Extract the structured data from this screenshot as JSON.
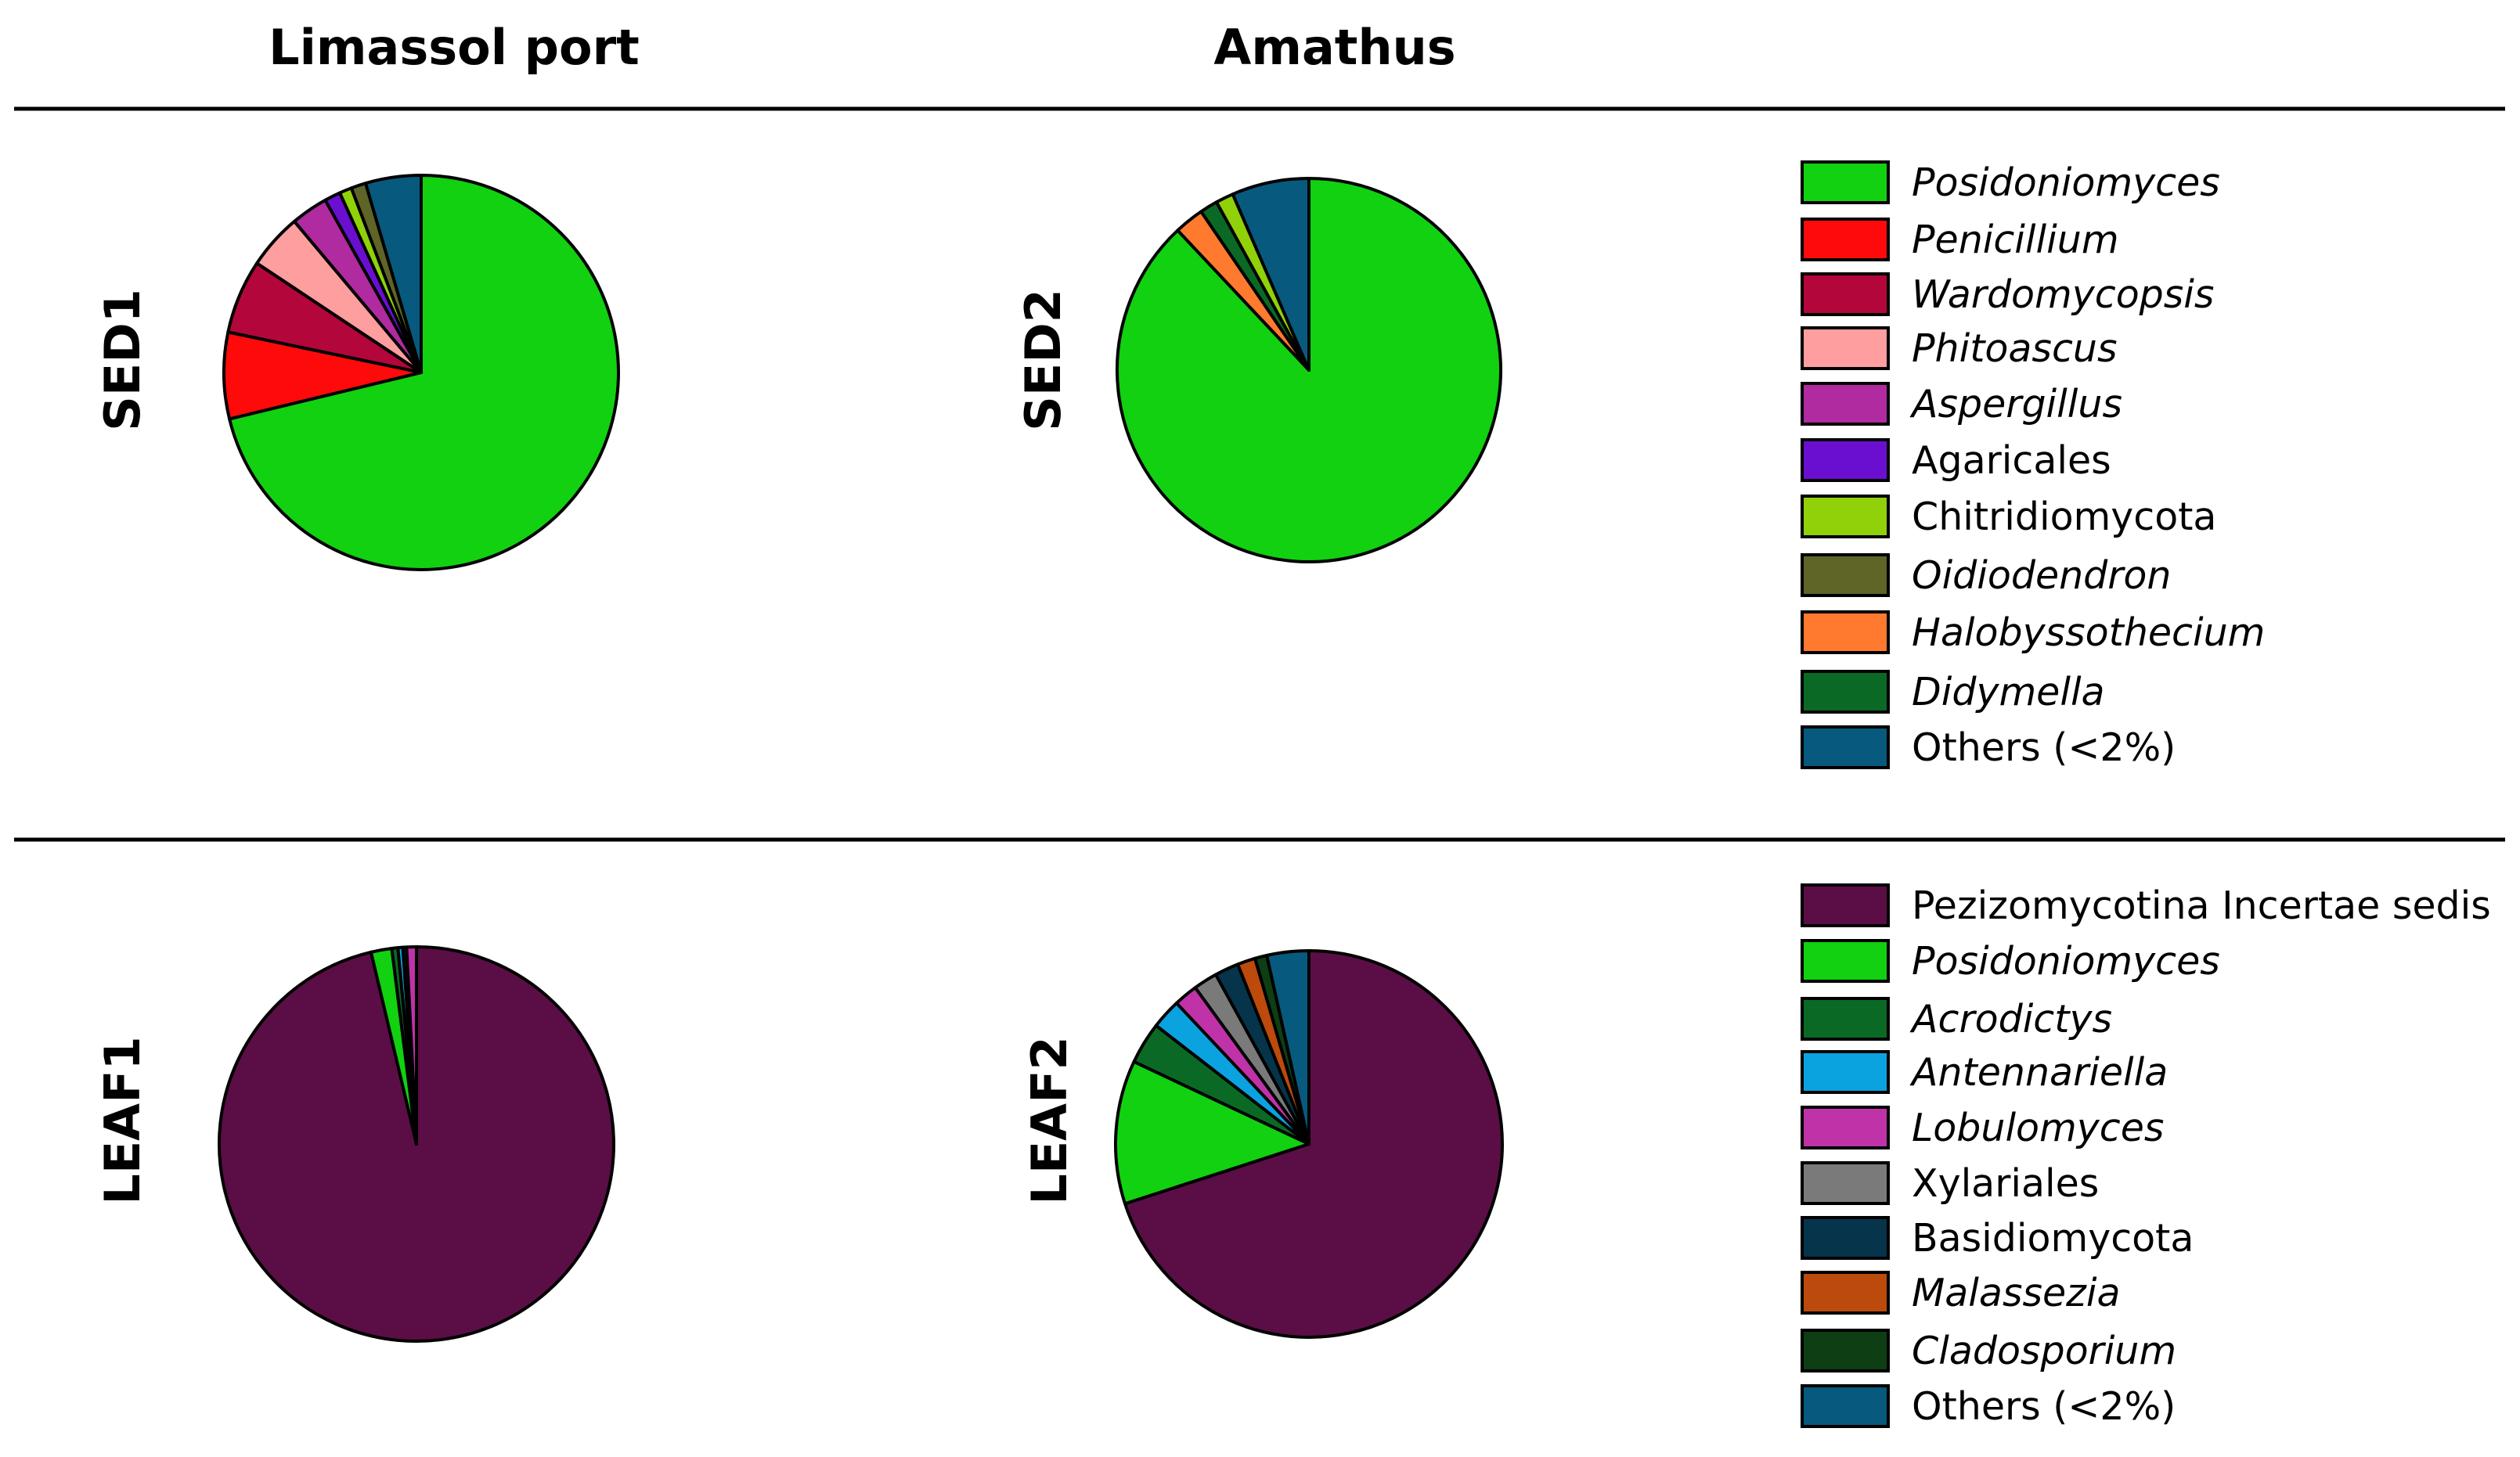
{
  "figure": {
    "columns": [
      "Limassol port",
      "Amathus"
    ]
  },
  "chart_data": [
    {
      "type": "pie",
      "row_label": "SED1",
      "column": "Limassol port",
      "legend_group": "sediment",
      "slices": [
        {
          "name": "Posidoniomyces",
          "value": 70.5
        },
        {
          "name": "Penicillium",
          "value": 7.0
        },
        {
          "name": "Wardomycopsis",
          "value": 6.0
        },
        {
          "name": "Phitoascus",
          "value": 4.5
        },
        {
          "name": "Aspergillus",
          "value": 3.0
        },
        {
          "name": "Agaricales",
          "value": 1.3
        },
        {
          "name": "Chitridiomycota",
          "value": 1.0
        },
        {
          "name": "Oidiodendron",
          "value": 1.2
        },
        {
          "name": "Others (<2%)",
          "value": 4.5
        }
      ]
    },
    {
      "type": "pie",
      "row_label": "SED2",
      "column": "Amathus",
      "legend_group": "sediment",
      "slices": [
        {
          "name": "Posidoniomyces",
          "value": 88.0
        },
        {
          "name": "Halobyssothecium",
          "value": 2.5
        },
        {
          "name": "Didymella",
          "value": 1.5
        },
        {
          "name": "Chitridiomycota",
          "value": 1.5
        },
        {
          "name": "Others (<2%)",
          "value": 6.5
        }
      ]
    },
    {
      "type": "pie",
      "row_label": "LEAF1",
      "column": "Limassol port",
      "legend_group": "leaf",
      "slices": [
        {
          "name": "Pezizomycotina Incertae sedis",
          "value": 96.3
        },
        {
          "name": "Posidoniomyces",
          "value": 1.7
        },
        {
          "name": "Acrodictys",
          "value": 0.5
        },
        {
          "name": "Antennariella",
          "value": 0.4
        },
        {
          "name": "Basidiomycota",
          "value": 0.3
        },
        {
          "name": "Lobulomyces",
          "value": 0.8
        }
      ]
    },
    {
      "type": "pie",
      "row_label": "LEAF2",
      "column": "Amathus",
      "legend_group": "leaf",
      "slices": [
        {
          "name": "Pezizomycotina Incertae sedis",
          "value": 70.0
        },
        {
          "name": "Posidoniomyces",
          "value": 12.0
        },
        {
          "name": "Acrodictys",
          "value": 3.5
        },
        {
          "name": "Antennariella",
          "value": 2.5
        },
        {
          "name": "Lobulomyces",
          "value": 2.0
        },
        {
          "name": "Xylariales",
          "value": 2.0
        },
        {
          "name": "Basidiomycota",
          "value": 2.0
        },
        {
          "name": "Malassezia",
          "value": 1.5
        },
        {
          "name": "Cladosporium",
          "value": 1.0
        },
        {
          "name": "Others (<2%)",
          "value": 3.5
        }
      ]
    }
  ],
  "legends": {
    "sediment": [
      {
        "label": "Posidoniomyces",
        "color": "#11D111",
        "italic": true
      },
      {
        "label": "Penicillium",
        "color": "#FF0A0A",
        "italic": true
      },
      {
        "label": "Wardomycopsis",
        "color": "#B3063A",
        "italic": true
      },
      {
        "label": "Phitoascus",
        "color": "#FF9E9E",
        "italic": true
      },
      {
        "label": "Aspergillus",
        "color": "#B02AA0",
        "italic": true
      },
      {
        "label": "Agaricales",
        "color": "#6A0FD0",
        "italic": false
      },
      {
        "label": "Chitridiomycota",
        "color": "#90D10A",
        "italic": false
      },
      {
        "label": "Oidiodendron",
        "color": "#5E6526",
        "italic": true
      },
      {
        "label": "Halobyssothecium",
        "color": "#FF7A2E",
        "italic": true
      },
      {
        "label": "Didymella",
        "color": "#0A6A25",
        "italic": true
      },
      {
        "label": "Others (<2%)",
        "color": "#075A7E",
        "italic": false
      }
    ],
    "leaf": [
      {
        "label": "Pezizomycotina Incertae sedis",
        "color": "#5A0E45",
        "italic": false
      },
      {
        "label": "Posidoniomyces",
        "color": "#11D111",
        "italic": true
      },
      {
        "label": "Acrodictys",
        "color": "#0A6A25",
        "italic": true
      },
      {
        "label": "Antennariella",
        "color": "#0BA2E0",
        "italic": true
      },
      {
        "label": "Lobulomyces",
        "color": "#C032A8",
        "italic": true
      },
      {
        "label": "Xylariales",
        "color": "#7A7A7A",
        "italic": false
      },
      {
        "label": "Basidiomycota",
        "color": "#06344A",
        "italic": false
      },
      {
        "label": "Malassezia",
        "color": "#BC4A0C",
        "italic": true
      },
      {
        "label": "Cladosporium",
        "color": "#0D3E14",
        "italic": true
      },
      {
        "label": "Others (<2%)",
        "color": "#075A7E",
        "italic": false
      }
    ]
  }
}
